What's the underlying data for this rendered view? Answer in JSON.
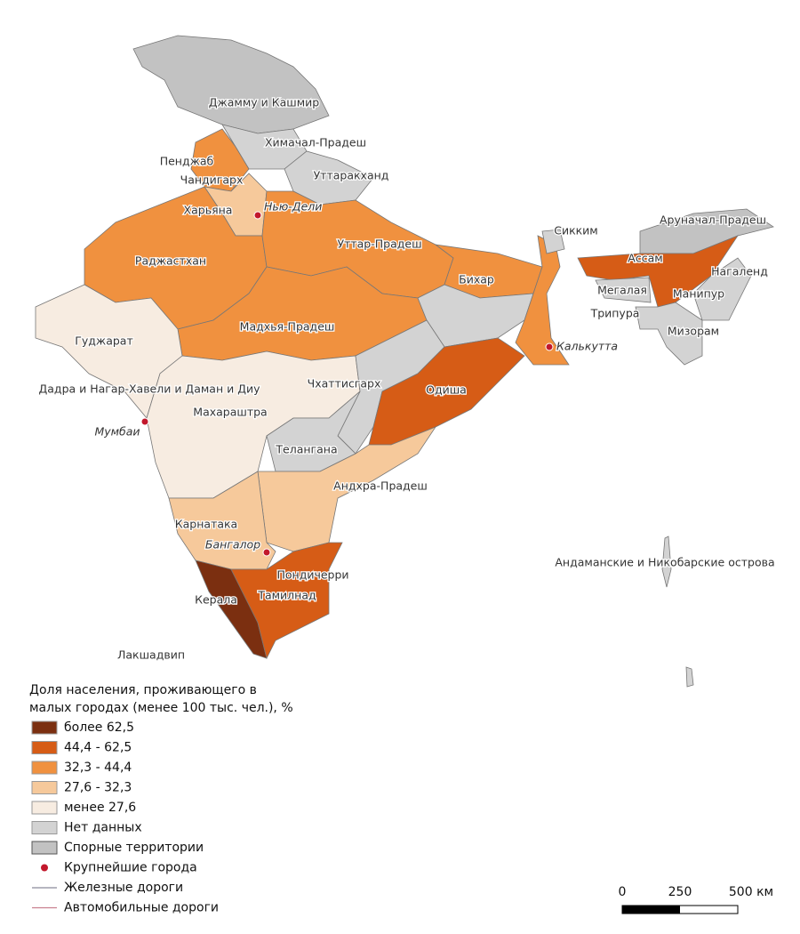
{
  "regions": [
    {
      "label": "Джамму и Кашмир"
    },
    {
      "label": "Химачал-Прадеш"
    },
    {
      "label": "Пенджаб"
    },
    {
      "label": "Чандигарх"
    },
    {
      "label": "Уттаракханд"
    },
    {
      "label": "Харьяна"
    },
    {
      "label": "Раджастхан"
    },
    {
      "label": "Уттар-Прадеш"
    },
    {
      "label": "Бихар"
    },
    {
      "label": "Сикким"
    },
    {
      "label": "Аруначал-Прадеш"
    },
    {
      "label": "Ассам"
    },
    {
      "label": "Нагаленд"
    },
    {
      "label": "Мегалая"
    },
    {
      "label": "Манипур"
    },
    {
      "label": "Трипура"
    },
    {
      "label": "Мизорам"
    },
    {
      "label": "Гуджарат"
    },
    {
      "label": "Мадхья-Прадеш"
    },
    {
      "label": "Дадра и Нагар-Хавели и Даман и Диу"
    },
    {
      "label": "Чхаттисгарх"
    },
    {
      "label": "Одиша"
    },
    {
      "label": "Махараштра"
    },
    {
      "label": "Телангана"
    },
    {
      "label": "Андхра-Прадеш"
    },
    {
      "label": "Карнатака"
    },
    {
      "label": "Пондичерри"
    },
    {
      "label": "Тамилнад"
    },
    {
      "label": "Керала"
    },
    {
      "label": "Лакшадвип"
    },
    {
      "label": "Андаманские и Никобарские острова"
    }
  ],
  "cities": [
    {
      "label": "Нью-Дели"
    },
    {
      "label": "Калькутта"
    },
    {
      "label": "Мумбаи"
    },
    {
      "label": "Бангалор"
    }
  ],
  "legend": {
    "title_lines": [
      "Доля населения, проживающего в",
      "малых городах (менее 100 тыс. чел.), %"
    ],
    "items": [
      {
        "label": "более 62,5",
        "color": "#7b2f10"
      },
      {
        "label": "44,4 - 62,5",
        "color": "#d65c16"
      },
      {
        "label": "32,3 - 44,4",
        "color": "#f0913f"
      },
      {
        "label": "27,6 - 32,3",
        "color": "#f6c99b"
      },
      {
        "label": "менее 27,6",
        "color": "#f7ece1"
      },
      {
        "label": "Нет данных",
        "color": "#d3d3d3"
      },
      {
        "label": "Спорные территории",
        "color": "#c2c2c2"
      },
      {
        "label": "Крупнейшие города",
        "color": "#c2182c"
      },
      {
        "label": "Железные дороги",
        "color": "#8a8a9a"
      },
      {
        "label": "Автомобильные дороги",
        "color": "#c98090"
      }
    ]
  },
  "scale": {
    "labels": [
      "0",
      "250",
      "500 км"
    ]
  }
}
